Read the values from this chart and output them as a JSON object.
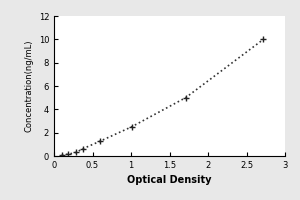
{
  "x": [
    0.1,
    0.188,
    0.289,
    0.376,
    0.592,
    1.008,
    1.71,
    2.72
  ],
  "y": [
    0.078,
    0.156,
    0.313,
    0.625,
    1.25,
    2.5,
    5.0,
    10.0
  ],
  "xlabel": "Optical Density",
  "ylabel": "Concentration(ng/mL)",
  "xlim": [
    0,
    3
  ],
  "ylim": [
    0,
    12
  ],
  "xticks": [
    0,
    0.5,
    1,
    1.5,
    2,
    2.5,
    3
  ],
  "xtick_labels": [
    "0",
    "0.5",
    "1",
    "1.5",
    "2",
    "2.5",
    "3"
  ],
  "yticks": [
    0,
    2,
    4,
    6,
    8,
    10,
    12
  ],
  "ytick_labels": [
    "0",
    "2",
    "4",
    "6",
    "8",
    "10",
    "12"
  ],
  "marker": "+",
  "marker_color": "#222222",
  "line_color": "#333333",
  "line_style": "dotted",
  "marker_size": 5,
  "linewidth": 1.2,
  "background_color": "#e8e8e8",
  "plot_background": "#ffffff",
  "border_color": "#000000",
  "xlabel_fontsize": 7,
  "ylabel_fontsize": 6,
  "tick_fontsize": 6
}
